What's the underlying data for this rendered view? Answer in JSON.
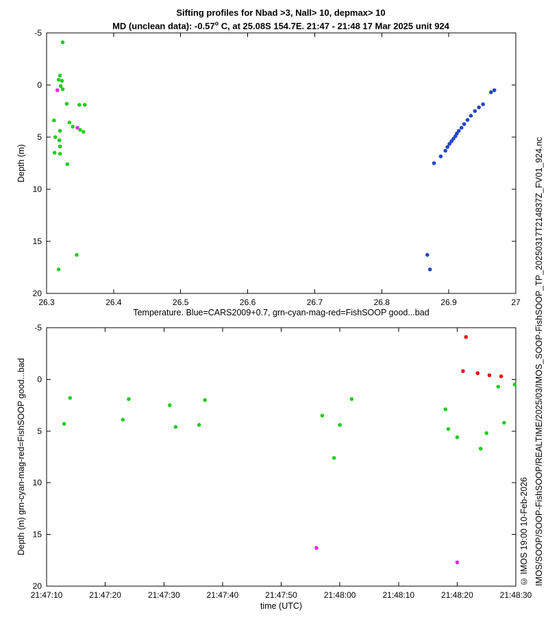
{
  "watermarks": {
    "copyright": "© IMOS 19:00 10-Feb-2026",
    "file_path": "IMOS/SOOP/SOOP-FishSOOP/REALTIME/2025/03/IMOS_SOOP-FishSOOP_TP_20250317T214837Z_FV01_924.nc"
  },
  "chart_data": [
    {
      "id": "temperature-vs-depth",
      "type": "scatter",
      "title_line1": "Sifting profiles for Nbad >3, Nall> 10, depmax> 10",
      "title_line2_prefix": "MD (unclean data): -0.57",
      "title_line2_sup": "o",
      "title_line2_suffix": " C, at 25.08S 154.7E. 21:47 - 21:48 17 Mar 2025 unit 924",
      "xlabel": "Temperature. Blue=CARS2009+0.7, grn-cyan-mag-red=FishSOOP good...bad",
      "ylabel": "Depth (m)",
      "xlim": [
        26.3,
        27
      ],
      "ylim": [
        -5,
        20
      ],
      "y_axis_direction": "depth increases downward",
      "grid": false,
      "legend": "none",
      "xticks": {
        "values": [
          26.3,
          26.4,
          26.5,
          26.6,
          26.7,
          26.8,
          26.9,
          27
        ],
        "labels": [
          "26.3",
          "26.4",
          "26.5",
          "26.6",
          "26.7",
          "26.8",
          "26.9",
          "27"
        ]
      },
      "yticks": {
        "values": [
          -5,
          0,
          5,
          10,
          15,
          20
        ],
        "labels": [
          "-5",
          "0",
          "5",
          "10",
          "15",
          "20"
        ]
      },
      "series": [
        {
          "key": "cars2009",
          "name": "CARS2009+0.7 (blue)",
          "color": "#2244cc",
          "marker": "filled-circle",
          "points": [
            [
              26.868,
              16.3
            ],
            [
              26.872,
              17.7
            ],
            [
              26.878,
              7.5
            ],
            [
              26.888,
              6.85
            ],
            [
              26.895,
              6.3
            ],
            [
              26.898,
              5.95
            ],
            [
              26.901,
              5.65
            ],
            [
              26.904,
              5.4
            ],
            [
              26.907,
              5.15
            ],
            [
              26.91,
              4.9
            ],
            [
              26.912,
              4.65
            ],
            [
              26.915,
              4.4
            ],
            [
              26.919,
              4.1
            ],
            [
              26.923,
              3.75
            ],
            [
              26.928,
              3.35
            ],
            [
              26.933,
              2.95
            ],
            [
              26.939,
              2.5
            ],
            [
              26.945,
              2.15
            ],
            [
              26.951,
              1.85
            ],
            [
              26.963,
              0.7
            ],
            [
              26.968,
              0.5
            ]
          ]
        },
        {
          "key": "fishsoop-good",
          "name": "FishSOOP good (green)",
          "color": "#22cc22",
          "marker": "filled-circle",
          "points": [
            [
              26.324,
              -4.1
            ],
            [
              26.32,
              -0.9
            ],
            [
              26.318,
              -0.5
            ],
            [
              26.323,
              -0.4
            ],
            [
              26.321,
              0.1
            ],
            [
              26.324,
              0.4
            ],
            [
              26.33,
              1.8
            ],
            [
              26.349,
              1.9
            ],
            [
              26.357,
              1.9
            ],
            [
              26.311,
              3.4
            ],
            [
              26.334,
              3.6
            ],
            [
              26.339,
              4.0
            ],
            [
              26.32,
              4.4
            ],
            [
              26.35,
              4.3
            ],
            [
              26.355,
              4.5
            ],
            [
              26.313,
              5.0
            ],
            [
              26.319,
              5.3
            ],
            [
              26.32,
              5.9
            ],
            [
              26.312,
              6.5
            ],
            [
              26.32,
              6.6
            ],
            [
              26.331,
              7.6
            ],
            [
              26.345,
              16.3
            ],
            [
              26.318,
              17.7
            ]
          ]
        },
        {
          "key": "fishsoop-suspect",
          "name": "FishSOOP suspect (magenta)",
          "color": "#ee22ee",
          "marker": "filled-circle",
          "points": [
            [
              26.316,
              0.5
            ],
            [
              26.346,
              4.1
            ]
          ]
        }
      ]
    },
    {
      "id": "time-vs-depth",
      "type": "scatter",
      "xlabel": "time (UTC)",
      "ylabel": "Depth (m) grn-cyan-mag-red=FishSOOP good...bad",
      "x_unit": "seconds since 21:47:10 UTC",
      "xlim": [
        0,
        80
      ],
      "ylim": [
        -5,
        20
      ],
      "y_axis_direction": "depth increases downward",
      "grid": false,
      "legend": "none",
      "xticks": {
        "values": [
          0,
          10,
          20,
          30,
          40,
          50,
          60,
          70,
          80
        ],
        "labels": [
          "21:47:10",
          "21:47:20",
          "21:47:30",
          "21:47:40",
          "21:47:50",
          "21:48:00",
          "21:48:10",
          "21:48:20",
          "21:48:30"
        ]
      },
      "yticks": {
        "values": [
          -5,
          0,
          5,
          10,
          15,
          20
        ],
        "labels": [
          "-5",
          "0",
          "5",
          "10",
          "15",
          "20"
        ]
      },
      "series": [
        {
          "key": "fishsoop-good",
          "name": "FishSOOP good (green)",
          "color": "#22cc22",
          "marker": "filled-circle",
          "points": [
            [
              3,
              4.3
            ],
            [
              4,
              1.8
            ],
            [
              13,
              3.9
            ],
            [
              14,
              1.9
            ],
            [
              21,
              2.5
            ],
            [
              22,
              4.6
            ],
            [
              26,
              4.4
            ],
            [
              27,
              2.0
            ],
            [
              47,
              3.5
            ],
            [
              49,
              7.6
            ],
            [
              50,
              4.4
            ],
            [
              52,
              1.9
            ],
            [
              68,
              2.9
            ],
            [
              68.5,
              4.8
            ],
            [
              70,
              5.6
            ],
            [
              74,
              6.7
            ],
            [
              75,
              5.2
            ],
            [
              77,
              0.7
            ],
            [
              78,
              4.2
            ],
            [
              79.8,
              0.5
            ]
          ]
        },
        {
          "key": "fishsoop-bad",
          "name": "FishSOOP bad (red)",
          "color": "#ee1111",
          "marker": "filled-circle",
          "points": [
            [
              71,
              -0.8
            ],
            [
              71.5,
              -4.1
            ],
            [
              73.5,
              -0.6
            ],
            [
              75.5,
              -0.4
            ],
            [
              77.5,
              -0.3
            ]
          ]
        },
        {
          "key": "fishsoop-suspect",
          "name": "FishSOOP suspect (magenta)",
          "color": "#ee22ee",
          "marker": "filled-circle",
          "points": [
            [
              46,
              16.3
            ],
            [
              70,
              17.7
            ]
          ]
        }
      ]
    }
  ]
}
